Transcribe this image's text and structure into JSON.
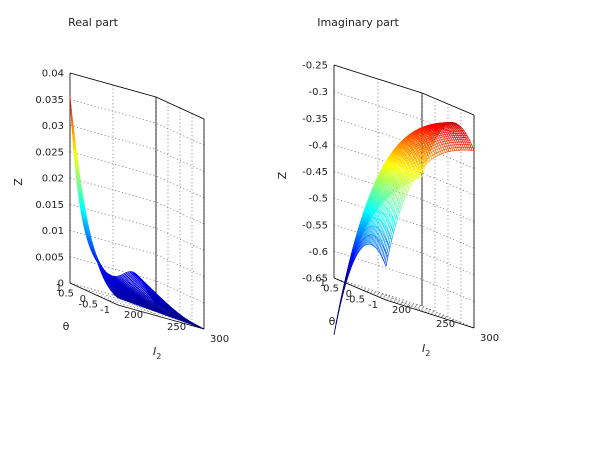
{
  "chart_data": [
    {
      "type": "surface",
      "title": "Real part",
      "xlabel": "I",
      "xlabel_sub": "2",
      "ylabel": "θ",
      "zlabel": "Z",
      "xlim": [
        200,
        300
      ],
      "ylim": [
        -1,
        1
      ],
      "zlim": [
        0,
        0.04
      ],
      "x_ticks": [
        "200",
        "250",
        "300"
      ],
      "y_ticks": [
        "-1",
        "-0.5",
        "0",
        "0.5",
        "1"
      ],
      "z_ticks": [
        "0",
        "0.005",
        "0.01",
        "0.015",
        "0.02",
        "0.025",
        "0.03",
        "0.035",
        "0.04"
      ],
      "grid": true,
      "colormap": "jet",
      "surface_samples": {
        "description_of_axes": "z at (I2, θ)",
        "at_I2_200": {
          "theta": [
            -1,
            -0.5,
            0,
            0.5,
            1
          ],
          "z": [
            0.003,
            0.004,
            0.008,
            0.016,
            0.034
          ]
        },
        "at_I2_250": {
          "theta": [
            -1,
            -0.5,
            0,
            0.5,
            1
          ],
          "z": [
            0.001,
            0.002,
            0.004,
            0.007,
            0.01
          ]
        },
        "at_I2_300": {
          "theta": [
            -1,
            -0.5,
            0,
            0.5,
            1
          ],
          "z": [
            0.0,
            0.001,
            0.002,
            0.004,
            0.006
          ]
        }
      }
    },
    {
      "type": "surface",
      "title": "Imaginary part",
      "xlabel": "I",
      "xlabel_sub": "2",
      "ylabel": "θ",
      "zlabel": "Z",
      "xlim": [
        200,
        300
      ],
      "ylim": [
        -1,
        1
      ],
      "zlim": [
        -0.65,
        -0.25
      ],
      "x_ticks": [
        "200",
        "250",
        "300"
      ],
      "y_ticks": [
        "-1",
        "-0.5",
        "0",
        "0.5",
        "1"
      ],
      "z_ticks": [
        "-0.25",
        "-0.3",
        "-0.35",
        "-0.4",
        "-0.45",
        "-0.5",
        "-0.55",
        "-0.6",
        "-0.65"
      ],
      "grid": true,
      "colormap": "jet",
      "surface_samples": {
        "description_of_axes": "z at (I2, θ)",
        "at_I2_200": {
          "theta": [
            -1,
            -0.5,
            0,
            0.5,
            1
          ],
          "z": [
            -0.55,
            -0.52,
            -0.55,
            -0.6,
            -0.65
          ]
        },
        "at_I2_250": {
          "theta": [
            -1,
            -0.5,
            0,
            0.5,
            1
          ],
          "z": [
            -0.38,
            -0.33,
            -0.33,
            -0.38,
            -0.45
          ]
        },
        "at_I2_300": {
          "theta": [
            -1,
            -0.5,
            0,
            0.5,
            1
          ],
          "z": [
            -0.33,
            -0.28,
            -0.28,
            -0.32,
            -0.4
          ]
        }
      }
    }
  ]
}
